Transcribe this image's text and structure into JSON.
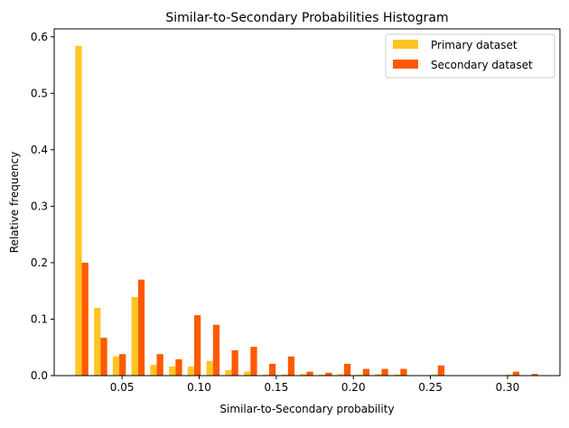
{
  "chart_data": {
    "type": "bar",
    "title": "Similar-to-Secondary Probabilities Histogram",
    "xlabel": "Similar-to-Secondary probability",
    "ylabel": "Relative frequency",
    "xlim": [
      0.006,
      0.334
    ],
    "ylim": [
      0,
      0.614
    ],
    "xticks": [
      0.05,
      0.1,
      0.15,
      0.2,
      0.25,
      0.3
    ],
    "xtick_labels": [
      "0.05",
      "0.10",
      "0.15",
      "0.20",
      "0.25",
      "0.30"
    ],
    "yticks": [
      0.0,
      0.1,
      0.2,
      0.3,
      0.4,
      0.5,
      0.6
    ],
    "ytick_labels": [
      "0.0",
      "0.1",
      "0.2",
      "0.3",
      "0.4",
      "0.5",
      "0.6"
    ],
    "bin_centers": [
      0.0239,
      0.0361,
      0.0482,
      0.0604,
      0.0725,
      0.0847,
      0.0968,
      0.109,
      0.1211,
      0.1333,
      0.1454,
      0.1576,
      0.1697,
      0.1819,
      0.194,
      0.2062,
      0.2183,
      0.2305,
      0.2426,
      0.2548,
      0.2669,
      0.2791,
      0.2912,
      0.3034,
      0.3155
    ],
    "bin_width": 0.01215,
    "grid": false,
    "legend_position": "top-right",
    "series": [
      {
        "name": "Primary dataset",
        "color": "#FFC425",
        "values": [
          0.584,
          0.12,
          0.034,
          0.139,
          0.019,
          0.016,
          0.016,
          0.026,
          0.01,
          0.007,
          0.002,
          0.002,
          0.003,
          0.002,
          0.003,
          0.002,
          0.003,
          0.002,
          0,
          0.002,
          0,
          0,
          0,
          0.002,
          0
        ]
      },
      {
        "name": "Secondary dataset",
        "color": "#FF5A00",
        "values": [
          0.2,
          0.067,
          0.038,
          0.17,
          0.038,
          0.029,
          0.107,
          0.09,
          0.045,
          0.051,
          0.021,
          0.034,
          0.007,
          0.005,
          0.021,
          0.012,
          0.012,
          0.012,
          0,
          0.018,
          0,
          0,
          0,
          0.007,
          0.003
        ]
      }
    ]
  }
}
